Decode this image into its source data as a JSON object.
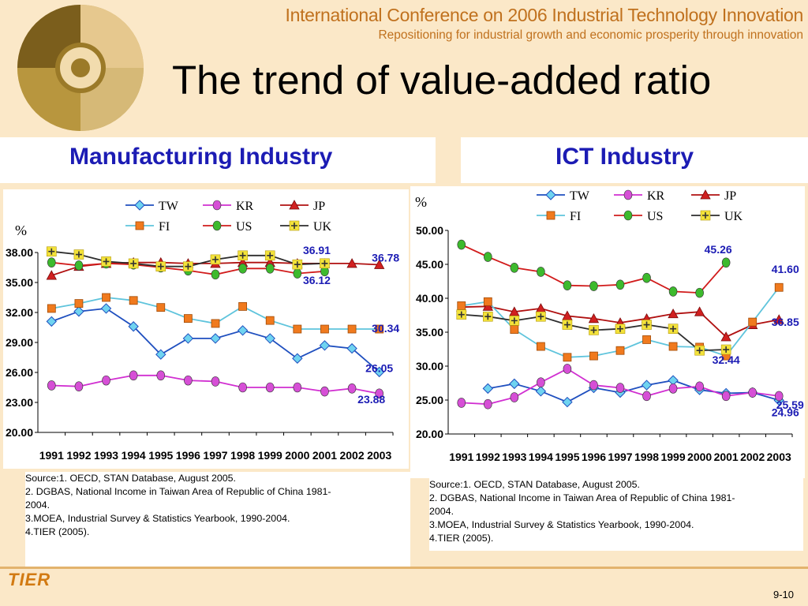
{
  "header": {
    "conference_title": "International Conference on 2006 Industrial Technology Innovation",
    "conference_subtitle": "Repositioning for industrial growth and economic prosperity through innovation",
    "slide_title": "The trend of value-added ratio"
  },
  "panels": {
    "left_title": "Manufacturing Industry",
    "right_title": "ICT Industry"
  },
  "colors": {
    "TW": "#1f4fbf",
    "KR": "#d12fd1",
    "JP": "#b01010",
    "FI": "#5fc4dc",
    "US": "#d11b1b",
    "UK": "#2d2d2d",
    "TW_marker": "#6fd3f0",
    "KR_marker": "#d64fd6",
    "JP_marker": "#d12020",
    "FI_marker": "#f07a1e",
    "US_marker": "#3dba2d",
    "UK_marker": "#f3e23a"
  },
  "sources": {
    "left": [
      "Source:1. OECD, STAN Database, August 2005.",
      "2. DGBAS, National Income in Taiwan Area of Republic of China 1981-\n2004.",
      "3.MOEA, Industrial Survey & Statistics Yearbook, 1990-2004.",
      "4.TIER (2005)."
    ],
    "right": [
      "Source:1. OECD, STAN Database, August 2005.",
      "2. DGBAS, National Income in Taiwan Area of Republic of China 1981-\n2004.",
      "3.MOEA, Industrial Survey & Statistics Yearbook, 1990-2004.",
      "4.TIER (2005)."
    ]
  },
  "footer": {
    "logo_text": "TIER",
    "page_number": "9-10"
  },
  "chart_data": [
    {
      "type": "line",
      "unit": "%",
      "ylim": [
        20,
        38
      ],
      "yticks": [
        "20.00",
        "23.00",
        "26.00",
        "29.00",
        "32.00",
        "35.00",
        "38.00"
      ],
      "categories": [
        "1991",
        "1992",
        "1993",
        "1994",
        "1995",
        "1996",
        "1997",
        "1998",
        "1999",
        "2000",
        "2001",
        "2002",
        "2003"
      ],
      "legend": "top",
      "series": [
        {
          "name": "TW",
          "marker": "diamond",
          "values": [
            31.1,
            32.1,
            32.4,
            30.6,
            27.8,
            29.4,
            29.4,
            30.2,
            29.4,
            27.4,
            28.7,
            28.4,
            26.05
          ]
        },
        {
          "name": "KR",
          "marker": "circle",
          "values": [
            24.7,
            24.6,
            25.2,
            25.7,
            25.7,
            25.2,
            25.1,
            24.5,
            24.5,
            24.5,
            24.1,
            24.4,
            23.88
          ]
        },
        {
          "name": "JP",
          "marker": "triangle",
          "values": [
            35.7,
            36.6,
            36.9,
            37.0,
            37.0,
            36.9,
            36.9,
            37.0,
            37.0,
            36.9,
            36.9,
            36.9,
            36.78
          ]
        },
        {
          "name": "FI",
          "marker": "square",
          "values": [
            32.4,
            32.9,
            33.5,
            33.2,
            32.5,
            31.4,
            30.9,
            32.6,
            31.2,
            30.34,
            30.34,
            30.34,
            30.34
          ]
        },
        {
          "name": "US",
          "marker": "circle",
          "values": [
            37.0,
            36.7,
            36.9,
            36.8,
            36.5,
            36.2,
            35.8,
            36.4,
            36.4,
            35.9,
            36.12,
            null,
            null
          ]
        },
        {
          "name": "UK",
          "marker": "plus",
          "values": [
            38.1,
            37.8,
            37.1,
            36.9,
            36.6,
            36.6,
            37.3,
            37.7,
            37.7,
            36.8,
            36.91,
            null,
            null
          ]
        }
      ],
      "annotations": [
        {
          "text": "36.91",
          "series": "UK",
          "index": 10
        },
        {
          "text": "36.12",
          "series": "US",
          "index": 10
        },
        {
          "text": "36.78",
          "series": "JP",
          "index": 12
        },
        {
          "text": "30.34",
          "series": "FI",
          "index": 12
        },
        {
          "text": "26.05",
          "series": "TW",
          "index": 12
        },
        {
          "text": "23.88",
          "series": "KR",
          "index": 12
        }
      ]
    },
    {
      "type": "line",
      "unit": "%",
      "ylim": [
        20,
        50
      ],
      "yticks": [
        "20.00",
        "25.00",
        "30.00",
        "35.00",
        "40.00",
        "45.00",
        "50.00"
      ],
      "categories": [
        "1991",
        "1992",
        "1993",
        "1994",
        "1995",
        "1996",
        "1997",
        "1998",
        "1999",
        "2000",
        "2001",
        "2002",
        "2003"
      ],
      "legend": "top",
      "series": [
        {
          "name": "TW",
          "marker": "diamond",
          "values": [
            null,
            26.7,
            27.4,
            26.3,
            24.7,
            26.8,
            26.1,
            27.2,
            27.9,
            26.5,
            26.0,
            26.1,
            24.96
          ]
        },
        {
          "name": "KR",
          "marker": "circle",
          "values": [
            24.6,
            24.4,
            25.4,
            27.6,
            29.6,
            27.2,
            26.8,
            25.6,
            26.7,
            27.0,
            25.6,
            26.1,
            25.59
          ]
        },
        {
          "name": "JP",
          "marker": "triangle",
          "values": [
            38.7,
            38.8,
            38.0,
            38.5,
            37.4,
            37.0,
            36.4,
            37.0,
            37.7,
            38.0,
            34.3,
            36.1,
            36.85
          ]
        },
        {
          "name": "FI",
          "marker": "square",
          "values": [
            38.9,
            39.5,
            35.4,
            32.9,
            31.3,
            31.5,
            32.3,
            33.9,
            32.9,
            32.8,
            31.5,
            36.5,
            41.6
          ]
        },
        {
          "name": "US",
          "marker": "circle",
          "values": [
            47.9,
            46.1,
            44.5,
            43.9,
            41.9,
            41.8,
            42.0,
            43.0,
            41.0,
            40.8,
            45.26,
            null,
            null
          ]
        },
        {
          "name": "UK",
          "marker": "plus",
          "values": [
            37.6,
            37.3,
            36.7,
            37.3,
            36.1,
            35.3,
            35.5,
            36.1,
            35.5,
            32.3,
            32.44,
            null,
            null
          ]
        }
      ],
      "annotations": [
        {
          "text": "45.26",
          "series": "US",
          "index": 10
        },
        {
          "text": "41.60",
          "series": "FI",
          "index": 12
        },
        {
          "text": "36.85",
          "series": "JP",
          "index": 12
        },
        {
          "text": "32.44",
          "series": "UK",
          "index": 10
        },
        {
          "text": "25.59",
          "series": "KR",
          "index": 12
        },
        {
          "text": "24.96",
          "series": "TW",
          "index": 12
        }
      ]
    }
  ]
}
